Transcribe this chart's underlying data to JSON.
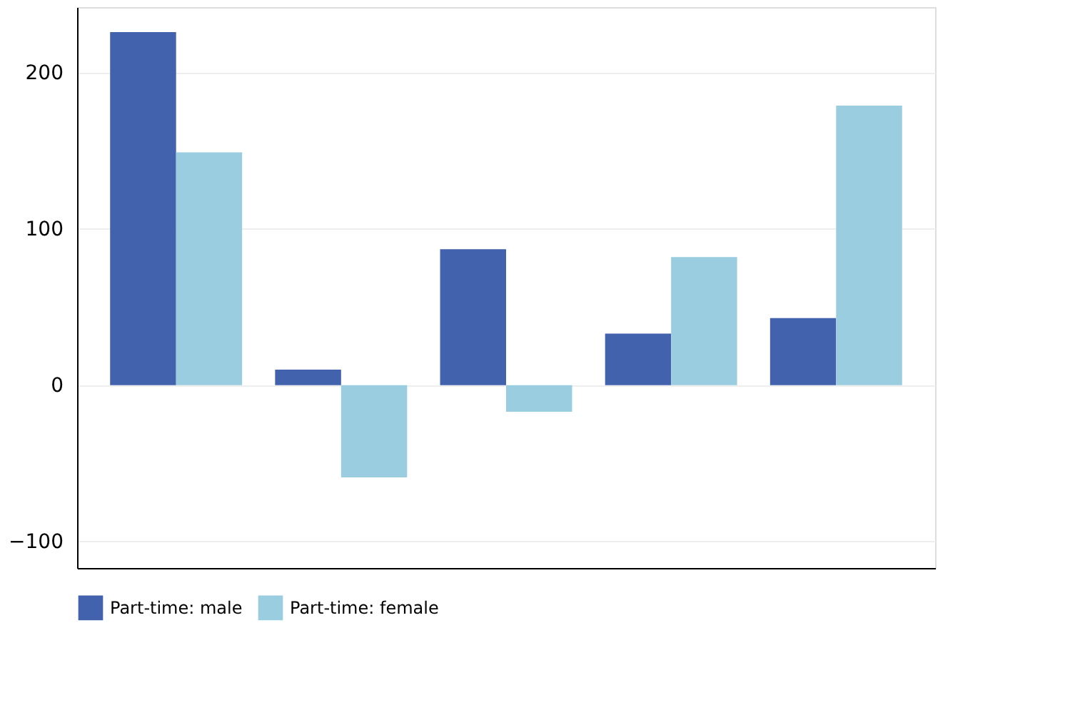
{
  "chart_data": {
    "type": "bar",
    "categories": [
      null,
      null,
      null,
      null,
      null
    ],
    "series": [
      {
        "name": "Part-time: male",
        "color": "#4262ae",
        "values": [
          226,
          10,
          87,
          33,
          43
        ]
      },
      {
        "name": "Part-time: female",
        "color": "#9acde0",
        "values": [
          149,
          -59,
          -17,
          82,
          179
        ]
      }
    ],
    "ylim": [
      -117,
      242
    ],
    "yticks": [
      -100,
      0,
      100,
      200
    ],
    "grid": "y",
    "legend": "bottom"
  }
}
